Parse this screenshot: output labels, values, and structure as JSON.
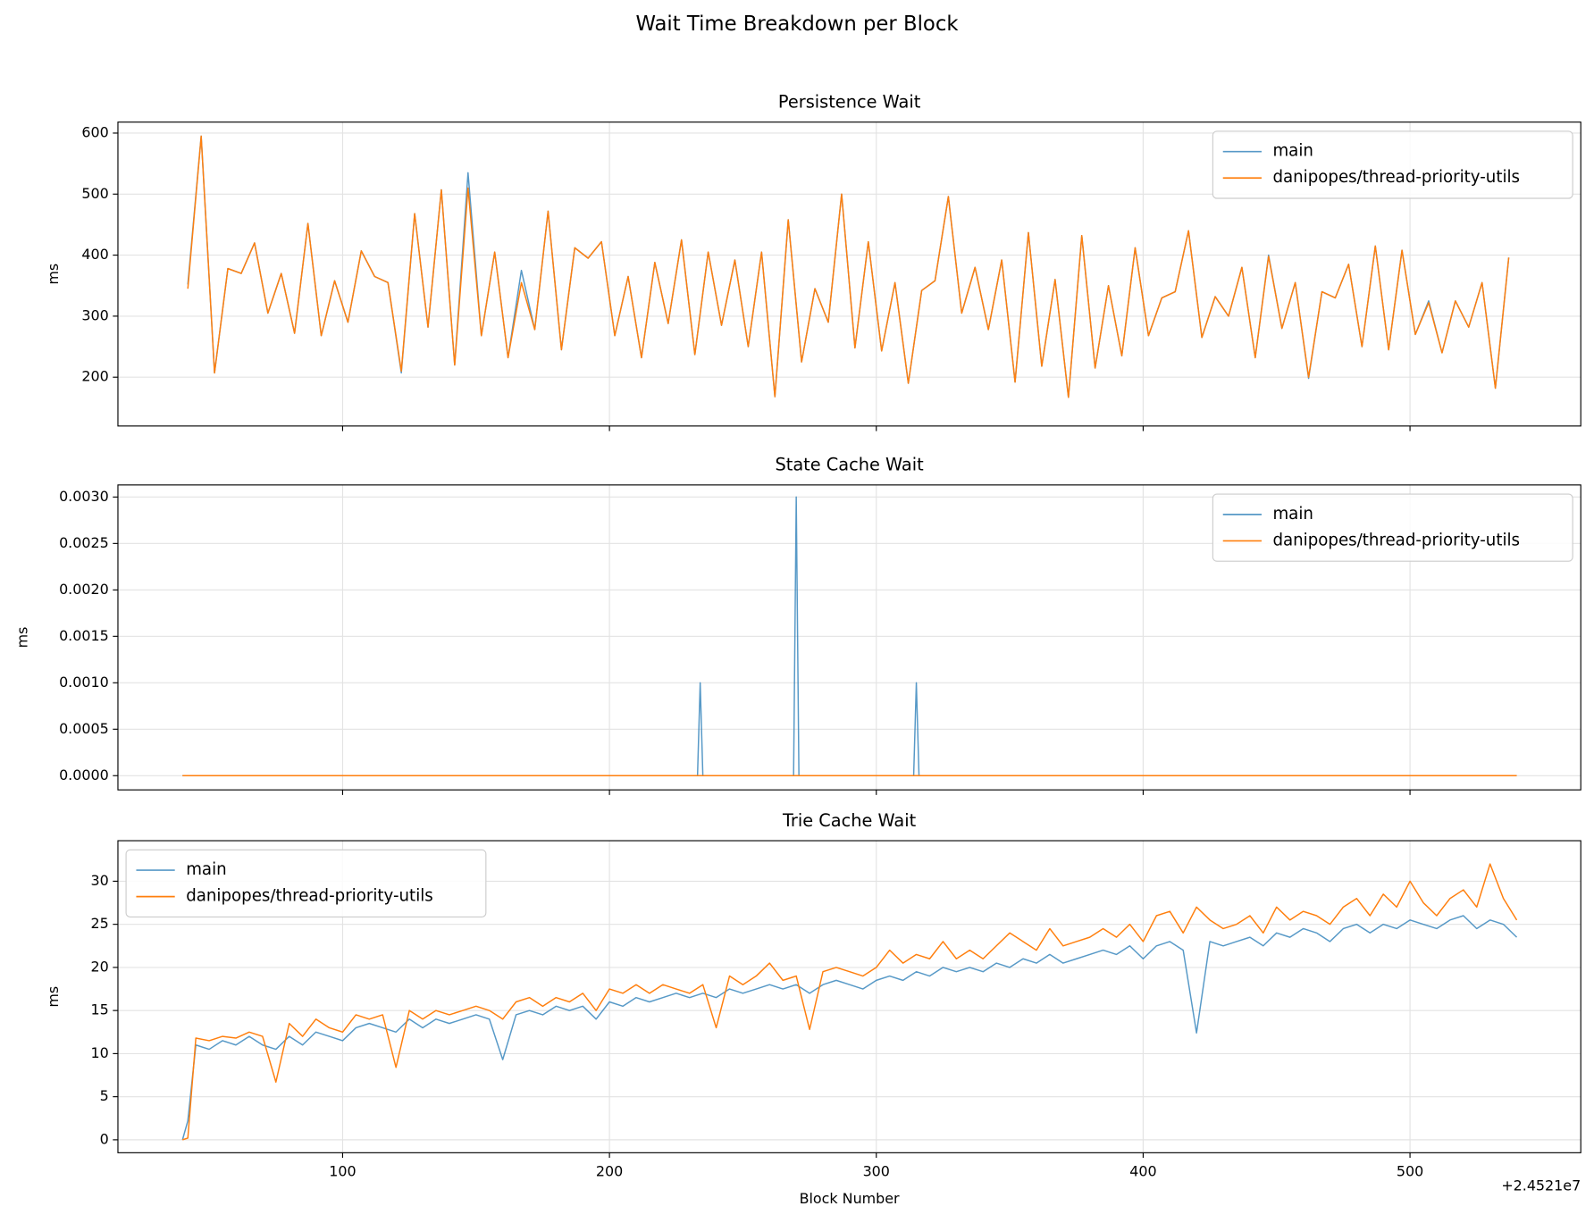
{
  "suptitle": "Wait Time Breakdown per Block",
  "x_offset": "+2.4521e7",
  "chart_data": [
    {
      "type": "line",
      "title": "Persistence Wait",
      "ylabel": "ms",
      "xlim": [
        15.8,
        564
      ],
      "ylim": [
        120,
        618
      ],
      "yticks": [
        200,
        300,
        400,
        500,
        600
      ],
      "grid": true,
      "legend": "upper right",
      "x": [
        42,
        47,
        52,
        57,
        62,
        67,
        72,
        77,
        82,
        87,
        92,
        97,
        102,
        107,
        112,
        117,
        122,
        127,
        132,
        137,
        142,
        147,
        152,
        157,
        162,
        167,
        172,
        177,
        182,
        187,
        192,
        197,
        202,
        207,
        212,
        217,
        222,
        227,
        232,
        237,
        242,
        247,
        252,
        257,
        262,
        267,
        272,
        277,
        282,
        287,
        292,
        297,
        302,
        307,
        312,
        317,
        322,
        327,
        332,
        337,
        342,
        347,
        352,
        357,
        362,
        367,
        372,
        377,
        382,
        387,
        392,
        397,
        402,
        407,
        412,
        417,
        422,
        427,
        432,
        437,
        442,
        447,
        452,
        457,
        462,
        467,
        472,
        477,
        482,
        487,
        492,
        497,
        502,
        507,
        512,
        517,
        522,
        527,
        532,
        537
      ],
      "series": [
        {
          "name": "main",
          "color": "#1f77b4",
          "values": [
            352,
            595,
            207,
            378,
            370,
            420,
            305,
            370,
            272,
            452,
            268,
            358,
            290,
            407,
            365,
            355,
            207,
            468,
            282,
            507,
            220,
            535,
            268,
            405,
            232,
            375,
            278,
            472,
            245,
            412,
            395,
            422,
            268,
            365,
            232,
            388,
            288,
            425,
            237,
            405,
            285,
            392,
            250,
            405,
            168,
            458,
            225,
            345,
            290,
            500,
            248,
            422,
            243,
            355,
            190,
            342,
            358,
            496,
            305,
            380,
            278,
            392,
            192,
            437,
            218,
            360,
            167,
            432,
            215,
            350,
            235,
            412,
            268,
            330,
            340,
            440,
            265,
            332,
            300,
            380,
            232,
            400,
            280,
            355,
            198,
            340,
            330,
            385,
            250,
            415,
            245,
            408,
            270,
            325,
            240,
            325,
            282,
            355,
            182,
            396
          ]
        },
        {
          "name": "danipopes/thread-priority-utils",
          "color": "#ff7f0e",
          "values": [
            345,
            595,
            207,
            378,
            370,
            420,
            305,
            370,
            272,
            452,
            268,
            358,
            290,
            407,
            365,
            355,
            210,
            468,
            282,
            507,
            220,
            510,
            268,
            405,
            232,
            355,
            278,
            472,
            245,
            412,
            395,
            422,
            268,
            365,
            232,
            388,
            288,
            425,
            237,
            405,
            285,
            392,
            250,
            405,
            168,
            458,
            225,
            345,
            290,
            500,
            248,
            422,
            243,
            355,
            190,
            342,
            358,
            496,
            305,
            380,
            278,
            392,
            192,
            437,
            218,
            360,
            167,
            432,
            215,
            350,
            235,
            412,
            268,
            330,
            340,
            440,
            265,
            332,
            300,
            380,
            232,
            398,
            280,
            355,
            200,
            340,
            330,
            385,
            250,
            415,
            245,
            408,
            270,
            322,
            240,
            325,
            282,
            355,
            182,
            396
          ]
        }
      ]
    },
    {
      "type": "line",
      "title": "State Cache Wait",
      "ylabel": "ms",
      "xlim": [
        15.8,
        564
      ],
      "ylim": [
        -0.000153,
        0.00313
      ],
      "grid": true,
      "legend": "upper right",
      "yticks": [
        {
          "value": 0,
          "label": "0.0000"
        },
        {
          "value": 0.0005,
          "label": "0.0005"
        },
        {
          "value": 0.001,
          "label": "0.0010"
        },
        {
          "value": 0.0015,
          "label": "0.0015"
        },
        {
          "value": 0.002,
          "label": "0.0020"
        },
        {
          "value": 0.0025,
          "label": "0.0025"
        },
        {
          "value": 0.003,
          "label": "0.0030"
        }
      ],
      "series": [
        {
          "name": "main",
          "color": "#1f77b4",
          "x": [
            40,
            233,
            234,
            235,
            269,
            270,
            271,
            314,
            315,
            316,
            540
          ],
          "values": [
            0,
            0,
            0.001,
            0,
            0,
            0.003,
            0,
            0,
            0.001,
            0,
            0
          ]
        },
        {
          "name": "danipopes/thread-priority-utils",
          "color": "#ff7f0e",
          "x": [
            40,
            540
          ],
          "values": [
            0,
            0
          ]
        }
      ]
    },
    {
      "type": "line",
      "title": "Trie Cache Wait",
      "ylabel": "ms",
      "xlabel": "Block Number",
      "xlim": [
        15.8,
        564
      ],
      "ylim": [
        -1.5,
        34.7
      ],
      "xticks": [
        100,
        200,
        300,
        400,
        500
      ],
      "yticks": [
        0,
        5,
        10,
        15,
        20,
        25,
        30
      ],
      "grid": true,
      "legend": "upper left",
      "x": [
        40,
        42,
        45,
        50,
        55,
        60,
        65,
        70,
        75,
        80,
        85,
        90,
        95,
        100,
        105,
        110,
        115,
        120,
        125,
        130,
        135,
        140,
        145,
        150,
        155,
        160,
        165,
        170,
        175,
        180,
        185,
        190,
        195,
        200,
        205,
        210,
        215,
        220,
        225,
        230,
        235,
        240,
        245,
        250,
        255,
        260,
        265,
        270,
        275,
        280,
        285,
        290,
        295,
        300,
        305,
        310,
        315,
        320,
        325,
        330,
        335,
        340,
        345,
        350,
        355,
        360,
        365,
        370,
        375,
        380,
        385,
        390,
        395,
        400,
        405,
        410,
        415,
        420,
        425,
        430,
        435,
        440,
        445,
        450,
        455,
        460,
        465,
        470,
        475,
        480,
        485,
        490,
        495,
        500,
        505,
        510,
        515,
        520,
        525,
        530,
        535,
        540
      ],
      "series": [
        {
          "name": "main",
          "color": "#1f77b4",
          "values": [
            0,
            2.2,
            11,
            10.5,
            11.5,
            11,
            12,
            11,
            10.5,
            12,
            11,
            12.5,
            12,
            11.5,
            13,
            13.5,
            13,
            12.5,
            14,
            13,
            14,
            13.5,
            14,
            14.5,
            14,
            9.3,
            14.5,
            15,
            14.5,
            15.5,
            15,
            15.5,
            14,
            16,
            15.5,
            16.5,
            16,
            16.5,
            17,
            16.5,
            17,
            16.5,
            17.5,
            17,
            17.5,
            18,
            17.5,
            18,
            17,
            18,
            18.5,
            18,
            17.5,
            18.5,
            19,
            18.5,
            19.5,
            19,
            20,
            19.5,
            20,
            19.5,
            20.5,
            20,
            21,
            20.5,
            21.5,
            20.5,
            21,
            21.5,
            22,
            21.5,
            22.5,
            21,
            22.5,
            23,
            22,
            12.4,
            23,
            22.5,
            23,
            23.5,
            22.5,
            24,
            23.5,
            24.5,
            24,
            23,
            24.5,
            25,
            24,
            25,
            24.5,
            25.5,
            25,
            24.5,
            25.5,
            26,
            24.5,
            25.5,
            25,
            23.5
          ]
        },
        {
          "name": "danipopes/thread-priority-utils",
          "color": "#ff7f0e",
          "values": [
            0,
            0.2,
            11.8,
            11.5,
            12,
            11.8,
            12.5,
            12,
            6.7,
            13.5,
            12,
            14,
            13,
            12.5,
            14.5,
            14,
            14.5,
            8.4,
            15,
            14,
            15,
            14.5,
            15,
            15.5,
            15,
            14,
            16,
            16.5,
            15.5,
            16.5,
            16,
            17,
            15,
            17.5,
            17,
            18,
            17,
            18,
            17.5,
            17,
            18,
            13,
            19,
            18,
            19,
            20.5,
            18.5,
            19,
            12.8,
            19.5,
            20,
            19.5,
            19,
            20,
            22,
            20.5,
            21.5,
            21,
            23,
            21,
            22,
            21,
            22.5,
            24,
            23,
            22,
            24.5,
            22.5,
            23,
            23.5,
            24.5,
            23.5,
            25,
            23,
            26,
            26.5,
            24,
            27,
            25.5,
            24.5,
            25,
            26,
            24,
            27,
            25.5,
            26.5,
            26,
            25,
            27,
            28,
            26,
            28.5,
            27,
            30,
            27.5,
            26,
            28,
            29,
            27,
            32,
            28,
            25.5
          ]
        }
      ]
    }
  ]
}
